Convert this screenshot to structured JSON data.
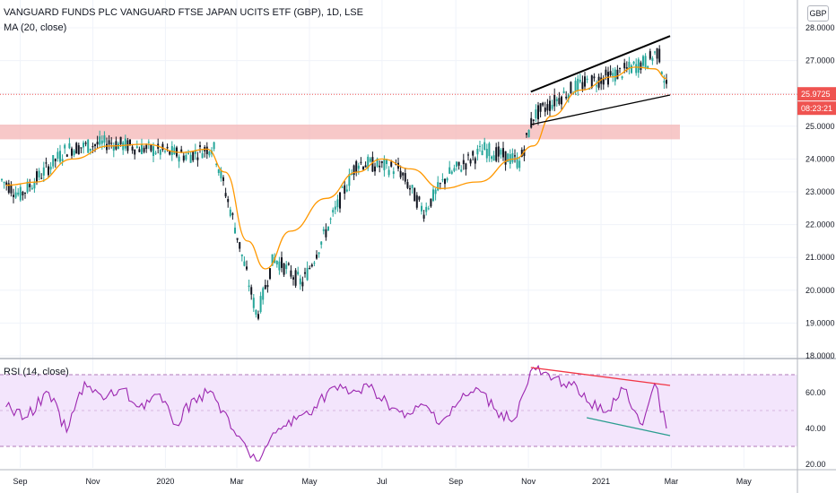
{
  "header": {
    "symbol_title": "VANGUARD FUNDS PLC VANGUARD FTSE JAPAN UCITS ETF (GBP), 1D, LSE",
    "ma_label": "MA (20, close)",
    "rsi_label": "RSI (14, close)",
    "currency": "GBP"
  },
  "price_tag": {
    "value": "25.9725",
    "countdown": "08:23:21"
  },
  "colors": {
    "up": "#26a69a",
    "down": "#131722",
    "ma": "#ff9800",
    "rsi": "#9c27b0",
    "rsi_band": "#f3e5fc",
    "support_zone": "#f4b6b6",
    "last_price": "#ef5350"
  },
  "chart_data": [
    {
      "type": "candlestick",
      "title": "VANGUARD FUNDS PLC VANGUARD FTSE JAPAN UCITS ETF (GBP), 1D, LSE",
      "ylim": [
        18.0,
        28.3
      ],
      "y_ticks": [
        "28.0000",
        "27.0000",
        "26.0000",
        "25.0000",
        "24.0000",
        "23.0000",
        "22.0000",
        "21.0000",
        "20.0000",
        "19.0000",
        "18.0000"
      ],
      "x_ticks": [
        "Sep",
        "Nov",
        "2020",
        "Mar",
        "May",
        "Jul",
        "Sep",
        "Nov",
        "2021",
        "Mar",
        "May"
      ],
      "series": [
        {
          "name": "MA (20, close)",
          "x": [
            "2019-08-20",
            "2019-09-15",
            "2019-10-15",
            "2019-11-15",
            "2019-12-15",
            "2020-01-15",
            "2020-02-05",
            "2020-02-20",
            "2020-03-10",
            "2020-03-25",
            "2020-04-15",
            "2020-05-15",
            "2020-06-10",
            "2020-07-01",
            "2020-07-25",
            "2020-08-20",
            "2020-09-20",
            "2020-10-20",
            "2020-11-05",
            "2020-11-20",
            "2020-12-15",
            "2021-01-10",
            "2021-01-30",
            "2021-02-15",
            "2021-02-25"
          ],
          "values": [
            23.2,
            23.3,
            24.0,
            24.4,
            24.45,
            24.2,
            24.3,
            23.6,
            21.5,
            20.65,
            21.8,
            22.8,
            23.6,
            24.0,
            23.7,
            23.1,
            23.3,
            24.0,
            24.4,
            25.3,
            26.1,
            26.5,
            26.8,
            26.75,
            26.45
          ]
        }
      ],
      "annotations": {
        "support_zone": [
          24.6,
          25.05
        ],
        "last_price": 25.9725,
        "wedge_upper": [
          {
            "x": "2020-11-03",
            "y": 26.05
          },
          {
            "x": "2021-02-28",
            "y": 27.75
          }
        ],
        "wedge_lower": [
          {
            "x": "2020-11-03",
            "y": 25.05
          },
          {
            "x": "2021-02-28",
            "y": 25.95
          }
        ]
      }
    },
    {
      "type": "line",
      "title": "RSI (14, close)",
      "ylim": [
        17,
        77
      ],
      "y_ticks": [
        "60.00",
        "40.00",
        "20.00"
      ],
      "bands": [
        30,
        70
      ],
      "series": [
        {
          "name": "RSI (14, close)",
          "x": [
            "2019-08-20",
            "2019-09-05",
            "2019-09-25",
            "2019-10-10",
            "2019-10-25",
            "2019-11-10",
            "2019-11-25",
            "2019-12-10",
            "2019-12-25",
            "2020-01-10",
            "2020-01-25",
            "2020-02-10",
            "2020-02-25",
            "2020-03-10",
            "2020-03-20",
            "2020-04-05",
            "2020-04-20",
            "2020-05-05",
            "2020-05-20",
            "2020-06-05",
            "2020-06-20",
            "2020-07-05",
            "2020-07-20",
            "2020-08-05",
            "2020-08-20",
            "2020-09-05",
            "2020-09-20",
            "2020-10-05",
            "2020-10-20",
            "2020-11-05",
            "2020-11-20",
            "2020-12-05",
            "2020-12-20",
            "2021-01-05",
            "2021-01-20",
            "2021-02-05",
            "2021-02-15",
            "2021-02-25"
          ],
          "values": [
            52,
            46,
            60,
            38,
            66,
            56,
            62,
            52,
            59,
            42,
            57,
            60,
            40,
            28,
            22,
            40,
            45,
            52,
            63,
            60,
            63,
            55,
            46,
            53,
            44,
            56,
            62,
            50,
            45,
            74,
            67,
            66,
            55,
            49,
            62,
            42,
            65,
            40
          ]
        }
      ],
      "annotations": {
        "divergence_upper": [
          {
            "x": "2020-11-03",
            "y": 74
          },
          {
            "x": "2021-02-28",
            "y": 64
          }
        ],
        "divergence_lower": [
          {
            "x": "2020-12-20",
            "y": 46
          },
          {
            "x": "2021-02-28",
            "y": 36
          }
        ]
      }
    }
  ]
}
